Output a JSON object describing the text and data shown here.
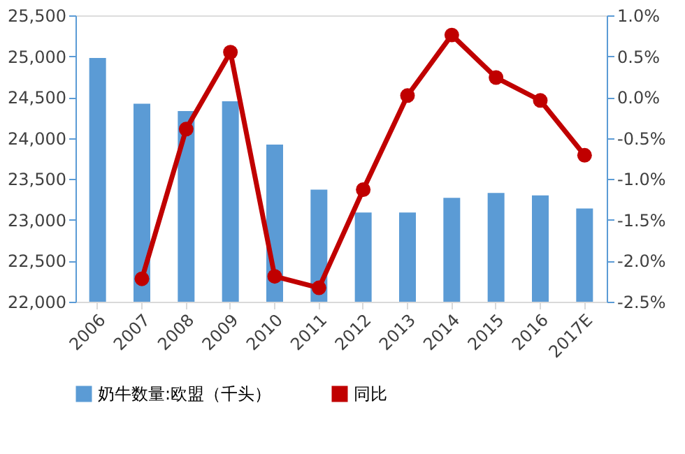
{
  "chart_data": {
    "type": "bar",
    "categories": [
      "2006",
      "2007",
      "2008",
      "2009",
      "2010",
      "2011",
      "2012",
      "2013",
      "2014",
      "2015",
      "2016",
      "2017E"
    ],
    "series": [
      {
        "name": "奶牛数量:欧盟（千头）",
        "color": "#5b9bd5",
        "values": [
          24980,
          24420,
          24330,
          24450,
          23920,
          23370,
          23090,
          23090,
          23270,
          23330,
          23300,
          23140
        ]
      },
      {
        "name": "同比",
        "type": "line",
        "axis": "y2",
        "color": "#c00000",
        "marker": "circle",
        "values": [
          null,
          -2.22,
          -0.39,
          0.55,
          -2.19,
          -2.33,
          -1.13,
          0.02,
          0.76,
          0.24,
          -0.04,
          -0.71
        ]
      }
    ],
    "ylim": [
      22000,
      25500
    ],
    "yticks": [
      {
        "value": 22000,
        "label": "22,000"
      },
      {
        "value": 22500,
        "label": "22,500"
      },
      {
        "value": 23000,
        "label": "23,000"
      },
      {
        "value": 23500,
        "label": "23,500"
      },
      {
        "value": 24000,
        "label": "24,000"
      },
      {
        "value": 24500,
        "label": "24,500"
      },
      {
        "value": 25000,
        "label": "25,000"
      },
      {
        "value": 25500,
        "label": "25,500"
      }
    ],
    "y2lim": [
      -2.5,
      1.0
    ],
    "y2ticks": [
      {
        "value": -2.5,
        "label": "-2.5%"
      },
      {
        "value": -2.0,
        "label": "-2.0%"
      },
      {
        "value": -1.5,
        "label": "-1.5%"
      },
      {
        "value": -1.0,
        "label": "-1.0%"
      },
      {
        "value": -0.5,
        "label": "-0.5%"
      },
      {
        "value": 0.0,
        "label": "0.0%"
      },
      {
        "value": 0.5,
        "label": "0.5%"
      },
      {
        "value": 1.0,
        "label": "1.0%"
      }
    ],
    "grid": false,
    "legend": "bottom"
  }
}
